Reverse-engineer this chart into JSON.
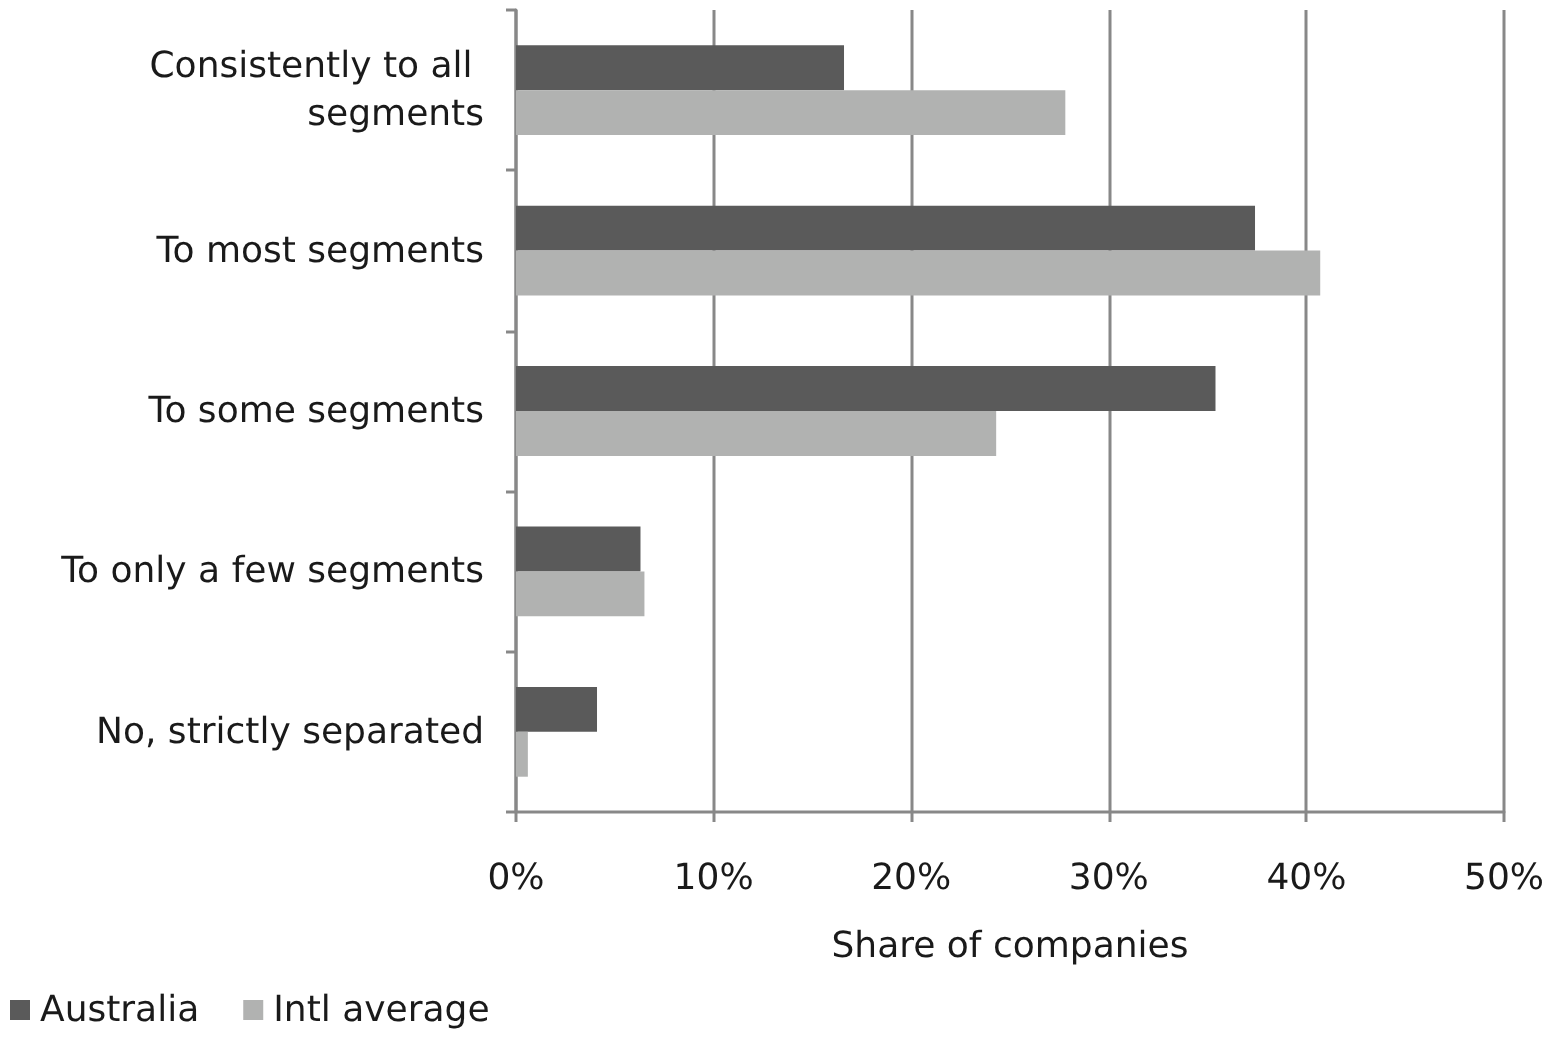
{
  "chart_data": {
    "type": "bar",
    "orientation": "horizontal",
    "categories": [
      "Consistently to all segments",
      "To most segments",
      "To some segments",
      "To only a few segments",
      "No, strictly separated"
    ],
    "series": [
      {
        "name": "Australia",
        "color": "#5a5a5a",
        "values": [
          16.6,
          37.4,
          35.4,
          6.3,
          4.1
        ]
      },
      {
        "name": "Intl average",
        "color": "#b1b2b1",
        "values": [
          27.8,
          40.7,
          24.3,
          6.5,
          0.6
        ]
      }
    ],
    "xlabel": "Share of companies",
    "xlim": [
      0,
      50
    ],
    "xticks": [
      {
        "value": 0,
        "label": "0%"
      },
      {
        "value": 10,
        "label": "10%"
      },
      {
        "value": 20,
        "label": "20%"
      },
      {
        "value": 30,
        "label": "30%"
      },
      {
        "value": 40,
        "label": "40%"
      },
      {
        "value": 50,
        "label": "50%"
      }
    ],
    "grid": "x",
    "legend": "bottom left"
  }
}
